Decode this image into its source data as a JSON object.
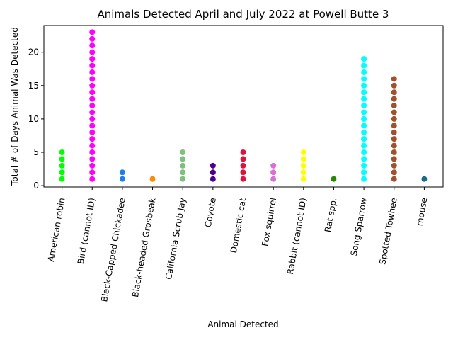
{
  "chart_data": {
    "type": "scatter",
    "title": "Animals Detected April and July 2022 at Powell Butte 3",
    "xlabel": "Animal Detected",
    "ylabel": "Total # of Days Animal Was Detected",
    "ylim": [
      -0.2,
      24.0
    ],
    "yticks": [
      0,
      5,
      10,
      15,
      20
    ],
    "grid": false,
    "categories": [
      "American robin",
      "Bird (cannot ID)",
      "Black-Capped Chickadee",
      "Black-headed Grosbeak",
      "California Scrub Jay",
      "Coyote",
      "Domestic cat",
      "Fox squirrel",
      "Rabbit (cannot ID)",
      "Rat spp.",
      "Song Sparrow",
      "Spotted Towhee",
      "mouse"
    ],
    "max_days": [
      5,
      23,
      2,
      1,
      5,
      3,
      5,
      3,
      5,
      1,
      19,
      16,
      1
    ],
    "colors": [
      "#00ff00",
      "#ff00ff",
      "#1e7fe8",
      "#ff8c00",
      "#7fbf7f",
      "#4b0090",
      "#dc143c",
      "#da70d6",
      "#ffff00",
      "#228b00",
      "#00ffff",
      "#a0522d",
      "#1a6a8c"
    ]
  }
}
